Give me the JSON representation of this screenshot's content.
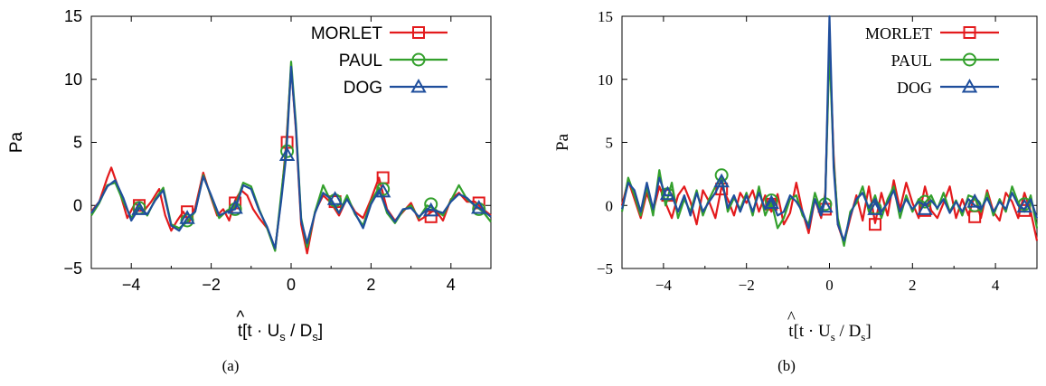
{
  "chart_data": [
    {
      "type": "line",
      "panel_label": "(a)",
      "xlabel_hat": "^",
      "xlabel_t": "t",
      "xlabel_rest": "[t · U",
      "xlabel_sub1": "s",
      "xlabel_mid": " / D",
      "xlabel_sub2": "s",
      "xlabel_end": "]",
      "ylabel": "Pa",
      "xlim": [
        -5,
        5
      ],
      "ylim": [
        -5,
        15
      ],
      "xticks": [
        -4,
        -2,
        0,
        2,
        4
      ],
      "xtick_labels": [
        "−4",
        "−2",
        "0",
        "2",
        "4"
      ],
      "yticks": [
        -5,
        0,
        5,
        10,
        15
      ],
      "ytick_labels": [
        "−5",
        "0",
        "5",
        "10",
        "15"
      ],
      "legend_position": "top-right",
      "series": [
        {
          "name": "MORLET",
          "color": "#e31a1c",
          "marker": "square",
          "x": [
            -5.0,
            -4.8,
            -4.6,
            -4.5,
            -4.3,
            -4.1,
            -3.9,
            -3.7,
            -3.5,
            -3.3,
            -3.15,
            -3.0,
            -2.85,
            -2.7,
            -2.55,
            -2.4,
            -2.2,
            -2.0,
            -1.85,
            -1.7,
            -1.55,
            -1.4,
            -1.25,
            -1.1,
            -0.95,
            -0.8,
            -0.6,
            -0.4,
            -0.25,
            -0.12,
            0.0,
            0.12,
            0.25,
            0.4,
            0.6,
            0.8,
            1.0,
            1.2,
            1.4,
            1.6,
            1.8,
            2.0,
            2.2,
            2.4,
            2.6,
            2.8,
            3.0,
            3.2,
            3.4,
            3.6,
            3.8,
            4.0,
            4.2,
            4.4,
            4.6,
            4.8,
            5.0
          ],
          "y": [
            -0.5,
            0.3,
            2.2,
            3.0,
            1.2,
            -1.0,
            0.2,
            -0.5,
            0.3,
            1.3,
            -0.8,
            -2.0,
            -1.2,
            -0.5,
            -1.3,
            -0.2,
            2.6,
            0.6,
            -0.8,
            -0.3,
            -1.2,
            0.4,
            1.2,
            0.8,
            -0.3,
            -1.0,
            -1.8,
            -3.5,
            0.5,
            5.0,
            11.0,
            6.0,
            -1.5,
            -3.8,
            -0.5,
            0.8,
            0.2,
            -0.8,
            0.6,
            -0.5,
            -1.0,
            0.5,
            2.2,
            -0.3,
            -1.2,
            -0.5,
            0.2,
            -1.2,
            -0.8,
            -0.3,
            -1.2,
            0.5,
            1.0,
            0.3,
            0.3,
            -0.3,
            -0.8
          ],
          "marker_x": [
            -3.8,
            -2.6,
            -1.4,
            -0.1,
            1.1,
            2.3,
            3.5,
            4.7
          ],
          "marker_y": [
            0.0,
            -0.5,
            0.2,
            5.0,
            0.3,
            2.2,
            -0.9,
            0.2
          ]
        },
        {
          "name": "PAUL",
          "color": "#33a02c",
          "marker": "circle",
          "x": [
            -5.0,
            -4.8,
            -4.6,
            -4.4,
            -4.2,
            -4.0,
            -3.8,
            -3.6,
            -3.4,
            -3.2,
            -3.0,
            -2.8,
            -2.6,
            -2.4,
            -2.2,
            -2.0,
            -1.8,
            -1.6,
            -1.4,
            -1.2,
            -1.0,
            -0.8,
            -0.6,
            -0.4,
            -0.25,
            -0.12,
            0.0,
            0.12,
            0.25,
            0.4,
            0.6,
            0.8,
            1.0,
            1.2,
            1.4,
            1.6,
            1.8,
            2.0,
            2.2,
            2.4,
            2.6,
            2.8,
            3.0,
            3.2,
            3.4,
            3.6,
            3.8,
            4.0,
            4.2,
            4.4,
            4.6,
            4.8,
            5.0
          ],
          "y": [
            -0.8,
            0.2,
            1.6,
            1.8,
            0.3,
            -1.0,
            0.0,
            -0.8,
            0.5,
            1.4,
            -1.5,
            -1.8,
            -1.3,
            -0.5,
            2.4,
            0.7,
            -1.0,
            -0.4,
            -0.1,
            1.8,
            1.5,
            -0.3,
            -1.8,
            -3.6,
            0.8,
            4.5,
            11.4,
            6.5,
            -1.0,
            -3.3,
            -0.5,
            1.6,
            0.3,
            -0.6,
            0.8,
            -0.7,
            -1.6,
            0.3,
            1.4,
            -0.6,
            -1.4,
            -0.4,
            0.0,
            -1.0,
            0.0,
            -0.3,
            -0.8,
            0.4,
            1.6,
            0.5,
            0.0,
            -0.5,
            -1.3
          ],
          "marker_x": [
            -3.8,
            -2.6,
            -1.4,
            -0.1,
            1.1,
            2.3,
            3.5,
            4.7
          ],
          "marker_y": [
            -0.2,
            -1.2,
            -0.3,
            4.3,
            0.4,
            1.3,
            0.1,
            -0.3
          ]
        },
        {
          "name": "DOG",
          "color": "#1f4e9c",
          "marker": "triangle",
          "x": [
            -5.0,
            -4.8,
            -4.6,
            -4.4,
            -4.2,
            -4.0,
            -3.8,
            -3.6,
            -3.4,
            -3.2,
            -3.0,
            -2.8,
            -2.6,
            -2.4,
            -2.2,
            -2.0,
            -1.8,
            -1.6,
            -1.4,
            -1.2,
            -1.0,
            -0.8,
            -0.6,
            -0.4,
            -0.25,
            -0.12,
            0.0,
            0.12,
            0.25,
            0.4,
            0.6,
            0.8,
            1.0,
            1.2,
            1.4,
            1.6,
            1.8,
            2.0,
            2.2,
            2.4,
            2.6,
            2.8,
            3.0,
            3.2,
            3.4,
            3.6,
            3.8,
            4.0,
            4.2,
            4.4,
            4.6,
            4.8,
            5.0
          ],
          "y": [
            -0.6,
            0.3,
            1.5,
            2.0,
            0.6,
            -1.2,
            -0.2,
            -0.7,
            0.4,
            1.2,
            -1.6,
            -2.0,
            -1.0,
            -0.5,
            2.3,
            0.8,
            -0.8,
            -0.5,
            -0.3,
            1.6,
            1.3,
            -0.4,
            -1.7,
            -3.4,
            0.3,
            4.0,
            11.0,
            6.2,
            -1.2,
            -3.0,
            -0.6,
            1.0,
            0.5,
            -0.6,
            0.5,
            -0.6,
            -1.8,
            0.1,
            1.2,
            -0.4,
            -1.3,
            -0.3,
            -0.2,
            -0.9,
            -0.3,
            -0.4,
            -0.6,
            0.3,
            0.9,
            0.6,
            0.0,
            -0.4,
            -0.9
          ],
          "marker_x": [
            -3.8,
            -2.6,
            -1.4,
            -0.1,
            1.1,
            2.3,
            3.5,
            4.7
          ],
          "marker_y": [
            -0.3,
            -1.0,
            -0.2,
            4.0,
            0.5,
            1.1,
            -0.4,
            -0.2
          ]
        }
      ]
    },
    {
      "type": "line",
      "panel_label": "(b)",
      "xlabel_hat": "^",
      "xlabel_t": "t",
      "xlabel_rest": "[t · U",
      "xlabel_sub1": "s",
      "xlabel_mid": " / D",
      "xlabel_sub2": "s",
      "xlabel_end": "]",
      "ylabel": "Pa",
      "xlim": [
        -5,
        5
      ],
      "ylim": [
        -5,
        15
      ],
      "xticks": [
        -4,
        -2,
        0,
        2,
        4
      ],
      "xtick_labels": [
        "−4",
        "−2",
        "0",
        "2",
        "4"
      ],
      "yticks": [
        -5,
        0,
        5,
        10,
        15
      ],
      "ytick_labels": [
        "−5",
        "0",
        "5",
        "10",
        "15"
      ],
      "legend_position": "top-right",
      "series": [
        {
          "name": "MORLET",
          "color": "#e31a1c",
          "marker": "square",
          "x": [
            -5.0,
            -4.85,
            -4.7,
            -4.55,
            -4.4,
            -4.25,
            -4.1,
            -3.95,
            -3.8,
            -3.65,
            -3.5,
            -3.35,
            -3.2,
            -3.05,
            -2.9,
            -2.75,
            -2.6,
            -2.45,
            -2.3,
            -2.15,
            -2.0,
            -1.85,
            -1.7,
            -1.55,
            -1.4,
            -1.25,
            -1.1,
            -0.95,
            -0.8,
            -0.65,
            -0.5,
            -0.35,
            -0.2,
            -0.1,
            0.0,
            0.1,
            0.2,
            0.35,
            0.5,
            0.65,
            0.8,
            0.95,
            1.1,
            1.25,
            1.4,
            1.55,
            1.7,
            1.85,
            2.0,
            2.15,
            2.3,
            2.45,
            2.6,
            2.75,
            2.9,
            3.05,
            3.2,
            3.35,
            3.5,
            3.65,
            3.8,
            3.95,
            4.1,
            4.25,
            4.4,
            4.55,
            4.7,
            4.85,
            5.0
          ],
          "y": [
            0.0,
            2.0,
            0.5,
            -1.0,
            1.0,
            -0.5,
            1.5,
            0.2,
            -1.0,
            0.8,
            1.5,
            0.3,
            -1.5,
            1.2,
            0.3,
            -1.0,
            1.5,
            0.5,
            -0.8,
            1.0,
            0.2,
            1.2,
            -0.5,
            0.8,
            -0.5,
            0.9,
            -1.5,
            -0.6,
            1.8,
            -0.5,
            -2.2,
            0.5,
            -1.0,
            1.0,
            13.0,
            4.0,
            -1.5,
            -3.0,
            -1.0,
            0.8,
            -1.2,
            1.5,
            -1.4,
            1.0,
            -0.8,
            2.0,
            -0.3,
            1.8,
            0.2,
            -1.0,
            1.5,
            -0.4,
            -1.0,
            0.2,
            1.5,
            -1.0,
            0.5,
            -0.8,
            0.8,
            -1.0,
            1.2,
            -0.5,
            -1.2,
            1.0,
            0.3,
            -1.0,
            1.0,
            -0.5,
            -2.8
          ],
          "marker_x": [
            -3.9,
            -2.6,
            -1.4,
            -0.1,
            1.1,
            2.3,
            3.5,
            4.7
          ],
          "marker_y": [
            0.8,
            1.3,
            0.1,
            -0.3,
            -1.5,
            -0.4,
            -0.9,
            -0.4
          ]
        },
        {
          "name": "PAUL",
          "color": "#33a02c",
          "marker": "circle",
          "x": [
            -5.0,
            -4.85,
            -4.7,
            -4.55,
            -4.4,
            -4.25,
            -4.1,
            -3.95,
            -3.8,
            -3.65,
            -3.5,
            -3.35,
            -3.2,
            -3.05,
            -2.9,
            -2.75,
            -2.6,
            -2.45,
            -2.3,
            -2.15,
            -2.0,
            -1.85,
            -1.7,
            -1.55,
            -1.4,
            -1.25,
            -1.1,
            -0.95,
            -0.8,
            -0.65,
            -0.5,
            -0.35,
            -0.2,
            -0.1,
            0.0,
            0.1,
            0.2,
            0.35,
            0.5,
            0.65,
            0.8,
            0.95,
            1.1,
            1.25,
            1.4,
            1.55,
            1.7,
            1.85,
            2.0,
            2.15,
            2.3,
            2.45,
            2.6,
            2.75,
            2.9,
            3.05,
            3.2,
            3.35,
            3.5,
            3.65,
            3.8,
            3.95,
            4.1,
            4.25,
            4.4,
            4.55,
            4.7,
            4.85,
            5.0
          ],
          "y": [
            -0.5,
            2.2,
            0.8,
            -0.8,
            1.5,
            -0.8,
            2.8,
            0.0,
            1.8,
            -1.0,
            0.5,
            -0.5,
            1.2,
            -0.8,
            0.5,
            1.5,
            2.3,
            -0.5,
            0.6,
            -0.3,
            1.0,
            -0.8,
            1.5,
            -0.8,
            0.3,
            -1.8,
            -1.0,
            0.5,
            0.8,
            -0.8,
            -1.5,
            1.0,
            -0.5,
            0.8,
            12.5,
            3.5,
            -1.0,
            -3.2,
            -0.5,
            0.2,
            1.5,
            -0.5,
            0.8,
            -1.0,
            0.5,
            1.5,
            -1.0,
            0.8,
            -0.5,
            0.5,
            0.2,
            0.8,
            -0.3,
            1.0,
            -0.5,
            0.4,
            -0.8,
            0.8,
            0.6,
            -0.5,
            1.0,
            -0.8,
            0.5,
            -0.5,
            1.5,
            0.2,
            -0.5,
            0.8,
            -1.8
          ],
          "marker_x": [
            -3.9,
            -2.6,
            -1.4,
            -0.1,
            1.1,
            2.3,
            3.5,
            4.7
          ],
          "marker_y": [
            0.9,
            2.4,
            0.4,
            0.1,
            -0.2,
            0.3,
            0.0,
            0.1
          ]
        },
        {
          "name": "DOG",
          "color": "#1f4e9c",
          "marker": "triangle",
          "x": [
            -5.0,
            -4.85,
            -4.7,
            -4.55,
            -4.4,
            -4.25,
            -4.1,
            -3.95,
            -3.8,
            -3.65,
            -3.5,
            -3.35,
            -3.2,
            -3.05,
            -2.9,
            -2.75,
            -2.6,
            -2.45,
            -2.3,
            -2.15,
            -2.0,
            -1.85,
            -1.7,
            -1.55,
            -1.4,
            -1.25,
            -1.1,
            -0.95,
            -0.8,
            -0.65,
            -0.5,
            -0.35,
            -0.2,
            -0.1,
            0.0,
            0.1,
            0.2,
            0.35,
            0.5,
            0.65,
            0.8,
            0.95,
            1.1,
            1.25,
            1.4,
            1.55,
            1.7,
            1.85,
            2.0,
            2.15,
            2.3,
            2.45,
            2.6,
            2.75,
            2.9,
            3.05,
            3.2,
            3.35,
            3.5,
            3.65,
            3.8,
            3.95,
            4.1,
            4.25,
            4.4,
            4.55,
            4.7,
            4.85,
            5.0
          ],
          "y": [
            -0.3,
            1.8,
            1.2,
            -0.5,
            1.8,
            -0.3,
            2.2,
            0.8,
            0.8,
            -0.5,
            0.8,
            -0.8,
            1.0,
            -0.5,
            0.3,
            1.0,
            2.0,
            -0.2,
            0.8,
            -0.5,
            0.8,
            -0.5,
            1.0,
            -0.3,
            0.5,
            -0.8,
            -0.5,
            0.8,
            0.3,
            -0.5,
            -1.8,
            0.5,
            -0.8,
            0.5,
            15.0,
            3.0,
            -1.5,
            -2.8,
            -0.8,
            0.5,
            1.0,
            -0.2,
            0.5,
            -0.5,
            0.2,
            1.2,
            -0.5,
            0.5,
            -0.3,
            0.3,
            0.0,
            0.4,
            -0.2,
            0.5,
            -0.6,
            0.3,
            -0.5,
            0.5,
            0.0,
            -0.3,
            0.6,
            -0.5,
            0.3,
            -0.3,
            1.0,
            0.0,
            -0.3,
            0.5,
            -1.0
          ],
          "marker_x": [
            -3.9,
            -2.6,
            -1.4,
            -0.1,
            1.1,
            2.3,
            3.5,
            4.7
          ],
          "marker_y": [
            0.9,
            1.9,
            0.2,
            -0.1,
            -0.3,
            -0.3,
            0.3,
            -0.1
          ]
        }
      ]
    }
  ]
}
